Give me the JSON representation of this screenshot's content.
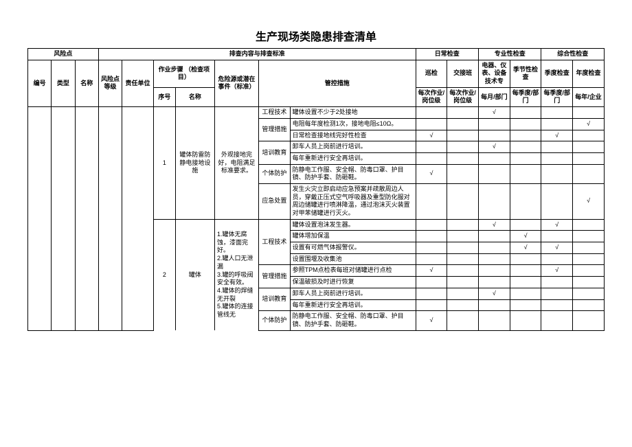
{
  "title": "生产现场类隐患排查清单",
  "header": {
    "riskPoint": "风险点",
    "inspectContent": "排查内容与排查标准",
    "daily": "日常检查",
    "professional": "专业性检查",
    "comprehensive": "综合性检查",
    "no": "编号",
    "type": "类型",
    "name": "名称",
    "level": "风险点等级",
    "respUnit": "责任单位",
    "step": "作业步骤        （检查项目）",
    "hazard": "危险源或潜在事件（标准）",
    "control": "管控措施",
    "patrol": "巡检",
    "shift": "交接班",
    "elec": "电器、仪表、设备技术专",
    "seasonal": "季节性检查",
    "quarter": "季度检查",
    "annual": "年度检查",
    "seq": "序号",
    "stepName": "名称",
    "perJob1": "每次作业/岗位级",
    "perJob2": "每次作业/岗位级",
    "perMonth": "每月/部门",
    "perQuarter1": "每季度/部门",
    "perQuarter2": "每季度/部门",
    "perYear": "每年/企业"
  },
  "step1": {
    "seq": "1",
    "name": "罐体防雷防静电接地设施",
    "hazard": "外观接地完好，电阻满足标准要求。"
  },
  "step2": {
    "seq": "2",
    "name": "罐体",
    "hazard": "1.罐体无腐蚀，漆面完好。\n2.罐人口无泄漏\n3.罐的呼吸阀安全有效。\n4.罐体的焊缝无开裂\n5.罐体的连接管线无"
  },
  "rows": [
    {
      "cat": "工程技术",
      "measure": "罐体设置不少于2处接地",
      "checks": [
        "",
        "",
        "√",
        "",
        "",
        ""
      ]
    },
    {
      "cat": "管理措施",
      "measure": "电阻每年度检测1次，接地电阻≤10Ω。",
      "checks": [
        "",
        "",
        "",
        "",
        "",
        "√"
      ],
      "catRowspan": 2
    },
    {
      "cat": "",
      "measure": "日常检查接地线完好性检查",
      "checks": [
        "√",
        "",
        "",
        "",
        "√",
        ""
      ]
    },
    {
      "cat": "培训教育",
      "measure": "卸车人员上岗前进行培训。",
      "checks": [
        "",
        "",
        "√",
        "",
        "",
        ""
      ],
      "catRowspan": 2
    },
    {
      "cat": "",
      "measure": "每年重新进行安全再培训。",
      "checks": [
        "",
        "",
        "",
        "",
        "",
        ""
      ]
    },
    {
      "cat": "个体防护",
      "measure": "防静电工作服、安全帽、防毒口罩、护目镜、防护手套、防砸鞋。",
      "checks": [
        "√",
        "",
        "",
        "",
        "",
        ""
      ]
    },
    {
      "cat": "应急处置",
      "measure": "发生火灾立即启动应急预案并疏散周边人员，穿戴正压式空气呼吸器及重型防化服对周边储罐进行喷淋降温，通过泡沫灭火装置对甲苯储罐进行灭火。",
      "checks": [
        "",
        "",
        "",
        "",
        "",
        "√"
      ]
    },
    {
      "cat": "工程技术",
      "measure": "罐体设置泡沫发生器。",
      "checks": [
        "",
        "",
        "√",
        "",
        "√",
        ""
      ],
      "catRowspan": 4
    },
    {
      "cat": "",
      "measure": "罐体增加保温",
      "checks": [
        "",
        "",
        "",
        "√",
        "",
        ""
      ]
    },
    {
      "cat": "",
      "measure": "设置有可燃气体报警仪。",
      "checks": [
        "",
        "",
        "",
        "√",
        "√",
        ""
      ]
    },
    {
      "cat": "",
      "measure": "设置围堰及收集池",
      "checks": [
        "",
        "",
        "",
        "",
        "",
        ""
      ]
    },
    {
      "cat": "管理措施",
      "measure": "参照TPM点检表每班对储罐进行点检",
      "checks": [
        "√",
        "",
        "",
        "",
        "√",
        ""
      ],
      "catRowspan": 2
    },
    {
      "cat": "",
      "measure": "保温破损及时进行恢复",
      "checks": [
        "",
        "",
        "",
        "",
        "",
        ""
      ]
    },
    {
      "cat": "培训教育",
      "measure": "卸车人员上岗前进行培训。",
      "checks": [
        "",
        "",
        "√",
        "",
        "",
        ""
      ],
      "catRowspan": 2
    },
    {
      "cat": "",
      "measure": "每年重新进行安全再培训。",
      "checks": [
        "",
        "",
        "",
        "",
        "",
        ""
      ]
    },
    {
      "cat": "个体防护",
      "measure": "防静电工作服、安全帽、防毒口罩、护目镜、防护手套、防砸鞋。",
      "checks": [
        "√",
        "",
        "",
        "",
        "",
        ""
      ]
    }
  ]
}
